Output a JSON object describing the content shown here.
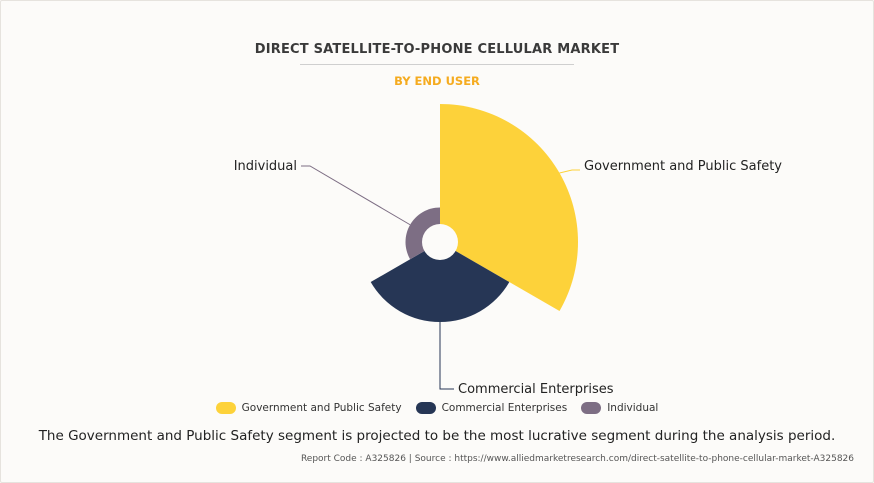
{
  "chart_data": {
    "type": "pie",
    "variant": "polar-area",
    "title": "DIRECT SATELLITE-TO-PHONE CELLULAR MARKET",
    "subtitle": "BY END USER",
    "series": [
      {
        "name": "Government and Public Safety",
        "share": 1.0,
        "color": "#fdd23a"
      },
      {
        "name": "Commercial Enterprises",
        "share": 0.58,
        "color": "#263655"
      },
      {
        "name": "Individual",
        "share": 0.25,
        "color": "#7d6e84"
      }
    ],
    "legend_position": "bottom"
  },
  "footer": {
    "note": "The Government and Public Safety segment is projected to be the most lucrative segment during the analysis period.",
    "source": "Report Code : A325826  |  Source : https://www.alliedmarketresearch.com/direct-satellite-to-phone-cellular-market-A325826"
  }
}
